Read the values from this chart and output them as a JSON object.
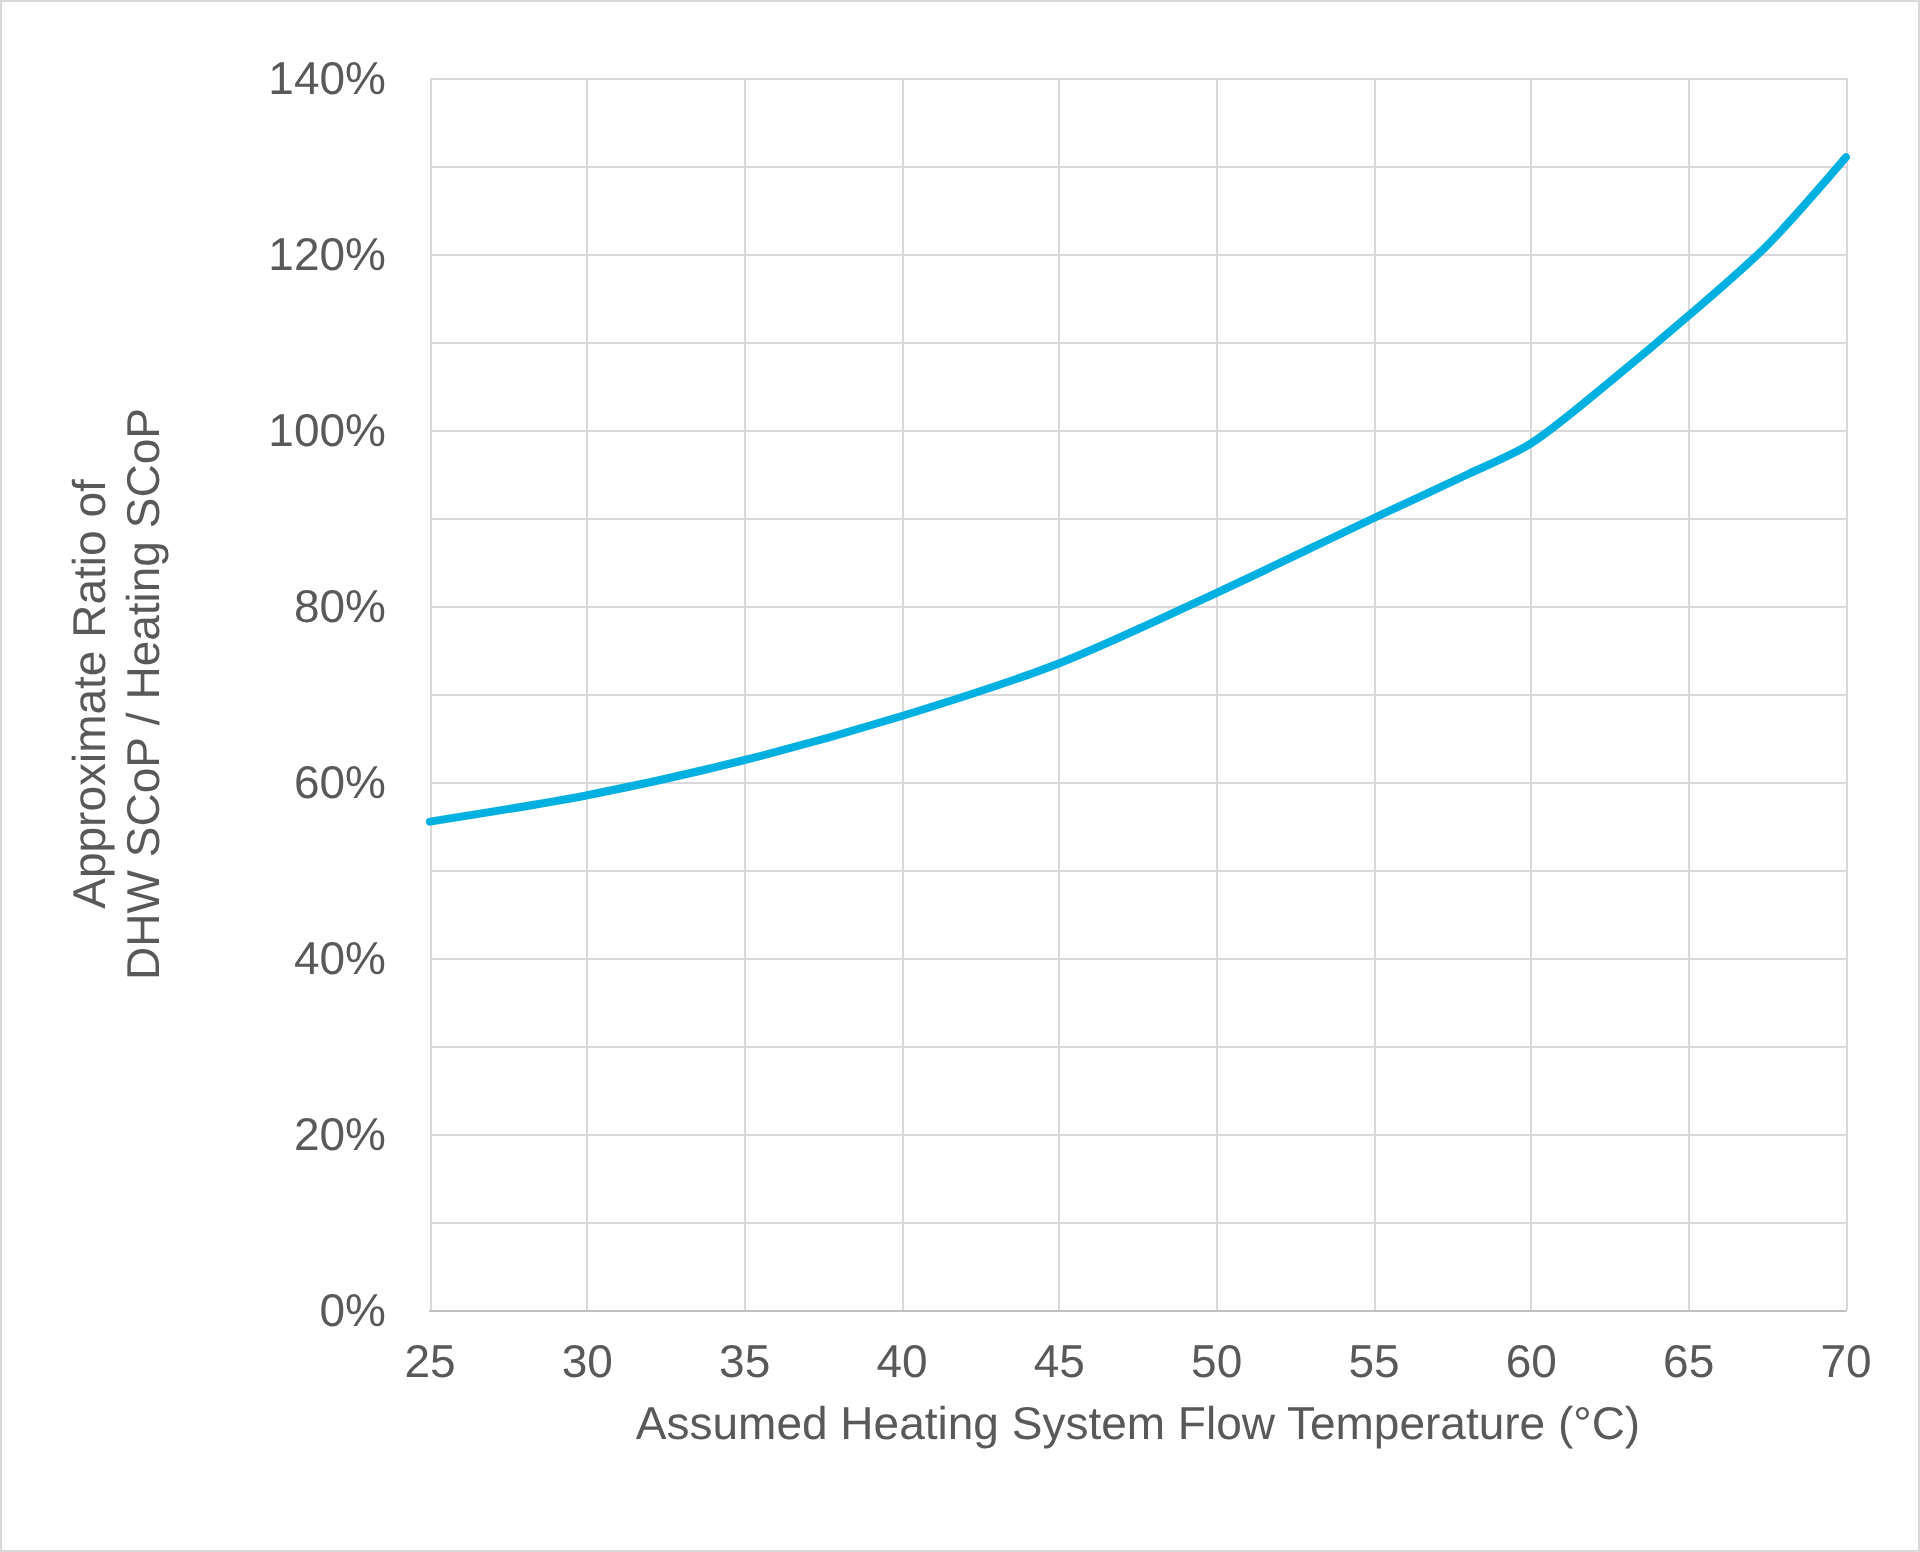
{
  "chart_data": {
    "type": "line",
    "xlabel": "Assumed Heating System Flow Temperature (°C)",
    "ylabel": "Approximate Ratio of\nDHW SCoP / Heating SCoP",
    "x": [
      25,
      30,
      35,
      40,
      45,
      50,
      55,
      58,
      60,
      62.5,
      65,
      67.5,
      70
    ],
    "series": [
      {
        "color": "#00b0e0",
        "values": [
          55.5,
          58.5,
          62.5,
          67.5,
          73.5,
          81.5,
          90,
          95,
          98.5,
          105.5,
          113,
          121,
          131
        ]
      }
    ],
    "xlim": [
      25,
      70
    ],
    "xticks": [
      25,
      30,
      35,
      40,
      45,
      50,
      55,
      60,
      65,
      70
    ],
    "ylim": [
      0,
      140
    ],
    "yticks": [
      {
        "value": 0,
        "label": "0%"
      },
      {
        "value": 10,
        "label": null
      },
      {
        "value": 20,
        "label": "20%"
      },
      {
        "value": 30,
        "label": null
      },
      {
        "value": 40,
        "label": "40%"
      },
      {
        "value": 50,
        "label": null
      },
      {
        "value": 60,
        "label": "60%"
      },
      {
        "value": 70,
        "label": null
      },
      {
        "value": 80,
        "label": "80%"
      },
      {
        "value": 90,
        "label": null
      },
      {
        "value": 100,
        "label": "100%"
      },
      {
        "value": 110,
        "label": null
      },
      {
        "value": 120,
        "label": "120%"
      },
      {
        "value": 130,
        "label": null
      },
      {
        "value": 140,
        "label": "140%"
      }
    ],
    "grid": true,
    "marker": "none",
    "line_style": "solid"
  }
}
